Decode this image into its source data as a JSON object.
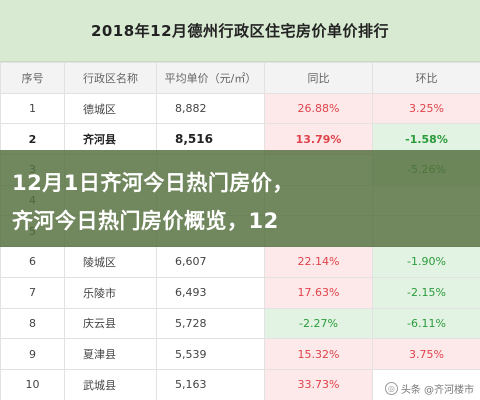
{
  "title": "2018年12月德州行政区住宅房价单价排行",
  "columns": [
    "序号",
    "行政区名称",
    "平均单价（元/㎡）",
    "同比",
    "环比"
  ],
  "rows": [
    {
      "no": "1",
      "district": "德城区",
      "price": "8,882",
      "yoy": "26.88%",
      "mom": "3.25%"
    },
    {
      "no": "2",
      "district": "齐河县",
      "price": "8,516",
      "yoy": "13.79%",
      "mom": "-1.58%"
    },
    {
      "no": "3",
      "district": "",
      "price": "",
      "yoy": "",
      "mom": "-5.26%"
    },
    {
      "no": "4",
      "district": "",
      "price": "",
      "yoy": "",
      "mom": ""
    },
    {
      "no": "5",
      "district": "",
      "price": "",
      "yoy": "",
      "mom": ""
    },
    {
      "no": "6",
      "district": "陵城区",
      "price": "6,607",
      "yoy": "22.14%",
      "mom": "-1.90%"
    },
    {
      "no": "7",
      "district": "乐陵市",
      "price": "6,493",
      "yoy": "17.63%",
      "mom": "-2.15%"
    },
    {
      "no": "8",
      "district": "庆云县",
      "price": "5,728",
      "yoy": "-2.27%",
      "mom": "-6.11%"
    },
    {
      "no": "9",
      "district": "夏津县",
      "price": "5,539",
      "yoy": "15.32%",
      "mom": "3.75%"
    },
    {
      "no": "10",
      "district": "武城县",
      "price": "5,163",
      "yoy": "33.73%",
      "mom": ""
    }
  ],
  "overlay": {
    "line1": "12月1日齐河今日热门房价，",
    "line2": "齐河今日热门房价概览，12"
  },
  "watermark": "头条 @齐河楼市",
  "colors": {
    "up": "#e0434b",
    "down": "#2a9b3a",
    "header_bg": "#d9ead3"
  }
}
